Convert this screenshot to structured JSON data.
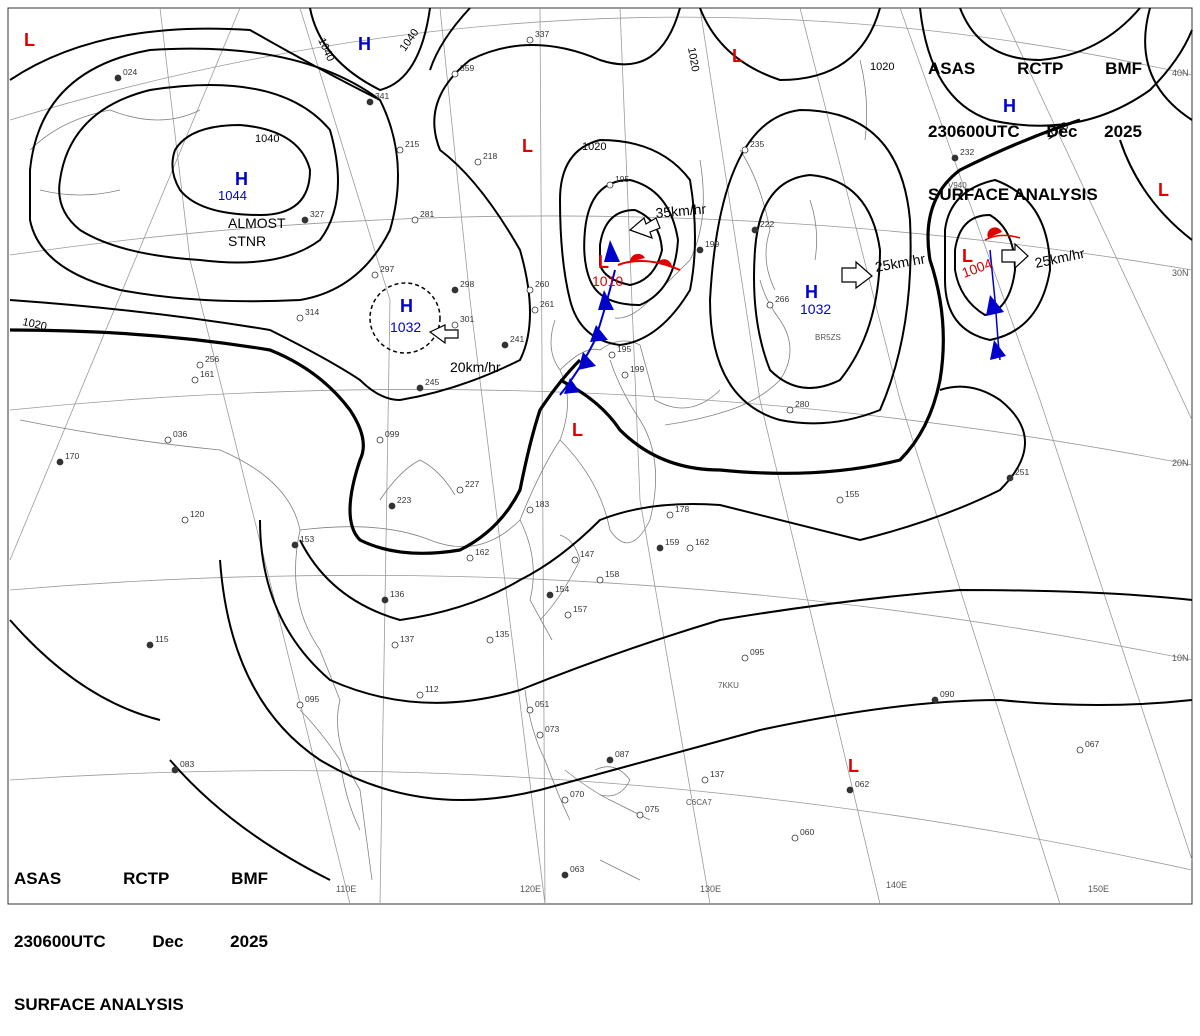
{
  "header": {
    "line1": [
      "ASAS",
      "RCTP",
      "BMF"
    ],
    "line2": [
      "230600UTC",
      "Dec",
      "2025"
    ],
    "line3": "SURFACE ANALYSIS"
  },
  "colors": {
    "high": "#0000cc",
    "low": "#e00000",
    "front_cold": "#0000cc",
    "front_warm": "#e00000",
    "isobar": "#000000",
    "coast": "#808080"
  },
  "lon_labels": [
    "110E",
    "120E",
    "130E",
    "140E",
    "150E"
  ],
  "lat_labels": [
    "40N",
    "30N",
    "20N",
    "10N"
  ],
  "isobar_labels": [
    "1040",
    "1040",
    "1040",
    "1020",
    "1020",
    "1020",
    "1020",
    "1020"
  ],
  "centers": [
    {
      "type": "H",
      "pressure": "1044",
      "note": [
        "ALMOST",
        "STNR"
      ]
    },
    {
      "type": "H",
      "pressure": "1032",
      "motion": "20km/hr"
    },
    {
      "type": "H",
      "pressure": "1032",
      "motion": "25km/hr"
    },
    {
      "type": "L",
      "pressure": "1010",
      "motion": "35km/hr"
    },
    {
      "type": "L",
      "pressure": "1004",
      "motion": "25km/hr"
    },
    {
      "type": "H"
    },
    {
      "type": "H"
    },
    {
      "type": "L"
    },
    {
      "type": "L"
    },
    {
      "type": "L"
    },
    {
      "type": "L"
    },
    {
      "type": "L"
    },
    {
      "type": "L"
    }
  ],
  "ship_ids": [
    "BR5ZS",
    "7KKU",
    "C6CA7",
    "V940"
  ],
  "station_samples": [
    "024",
    "337",
    "359",
    "341",
    "215",
    "218",
    "327",
    "281",
    "297",
    "298",
    "314",
    "301",
    "241",
    "261",
    "256",
    "245",
    "099",
    "036",
    "170",
    "161",
    "227",
    "223",
    "183",
    "162",
    "153",
    "120",
    "137",
    "136",
    "147",
    "158",
    "154",
    "157",
    "135",
    "115",
    "095",
    "112",
    "083",
    "051",
    "073",
    "087",
    "070",
    "075",
    "063",
    "060",
    "137",
    "062",
    "067",
    "095",
    "090",
    "178",
    "162",
    "159",
    "199",
    "195",
    "199",
    "235",
    "260",
    "222",
    "266",
    "280",
    "251",
    "155",
    "195",
    "232"
  ]
}
